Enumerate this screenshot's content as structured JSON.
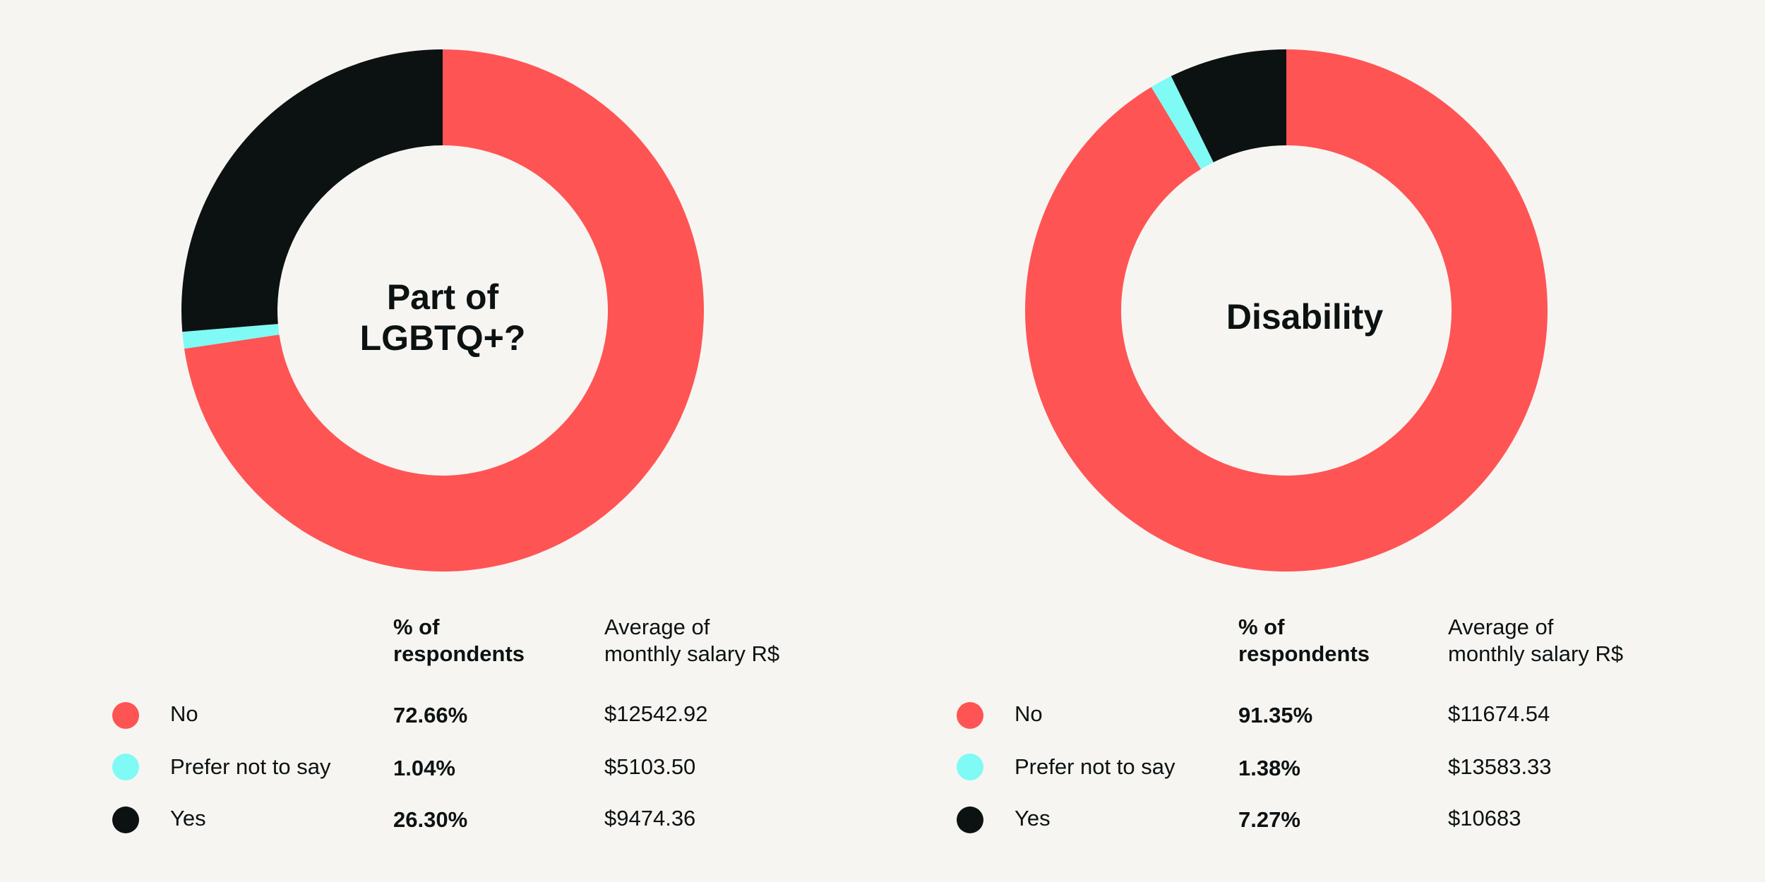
{
  "colors": {
    "no": "#ff5454",
    "prefer": "#7ffaf5",
    "yes": "#0c1212",
    "background": "#f7f5f2"
  },
  "header": {
    "pct_label": "% of\nrespondents",
    "salary_label": "Average of\nmonthly salary R$"
  },
  "chart_data": [
    {
      "type": "pie",
      "title": "Part of\nLGBTQ+?",
      "categories": [
        "No",
        "Prefer not to say",
        "Yes"
      ],
      "values": [
        72.66,
        1.04,
        26.3
      ],
      "percent_labels": [
        "72.66%",
        "1.04%",
        "26.30%"
      ],
      "salary_labels": [
        "$12542.92",
        "$5103.50",
        "$9474.36"
      ],
      "colors": [
        "#ff5454",
        "#7ffaf5",
        "#0c1212"
      ]
    },
    {
      "type": "pie",
      "title": "Disability",
      "categories": [
        "No",
        "Prefer not to say",
        "Yes"
      ],
      "values": [
        91.35,
        1.38,
        7.27
      ],
      "percent_labels": [
        "91.35%",
        "1.38%",
        "7.27%"
      ],
      "salary_labels": [
        "$11674.54",
        "$13583.33",
        "$10683"
      ],
      "colors": [
        "#ff5454",
        "#7ffaf5",
        "#0c1212"
      ]
    }
  ]
}
